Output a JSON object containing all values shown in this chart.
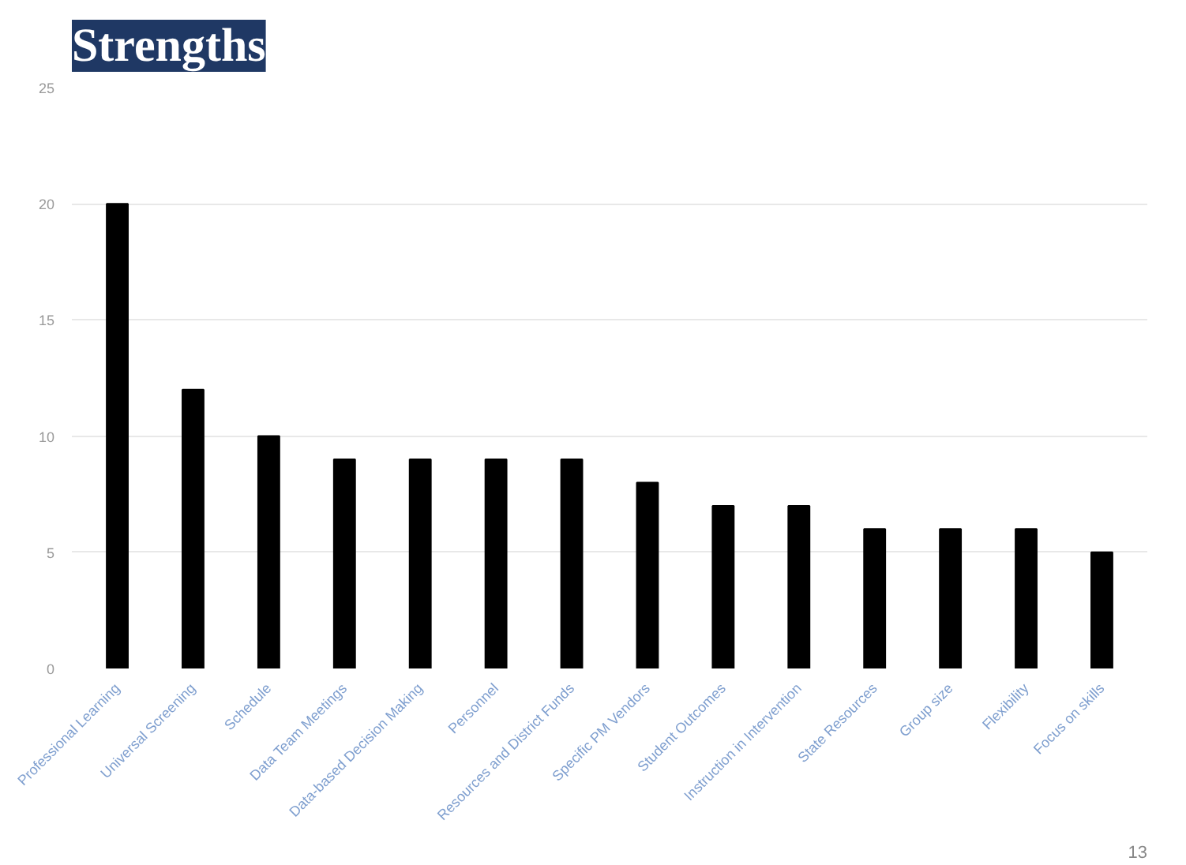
{
  "chart_data": {
    "type": "bar",
    "title": "Strengths",
    "categories": [
      "Professional Learning",
      "Universal Screening",
      "Schedule",
      "Data Team Meetings",
      "Data-based Decision Making",
      "Personnel",
      "Resources and District Funds",
      "Specific PM Vendors",
      "Student Outcomes",
      "Instruction in Intervention",
      "State Resources",
      "Group size",
      "Flexibility",
      "Focus on skills"
    ],
    "values": [
      20,
      12,
      10,
      9,
      9,
      9,
      9,
      8,
      7,
      7,
      6,
      6,
      6,
      5
    ],
    "color": "#000000",
    "ylim": [
      0,
      25
    ],
    "yticks": [
      0,
      5,
      10,
      15,
      20,
      25
    ],
    "grid": "y",
    "annotations": [
      "13"
    ]
  }
}
